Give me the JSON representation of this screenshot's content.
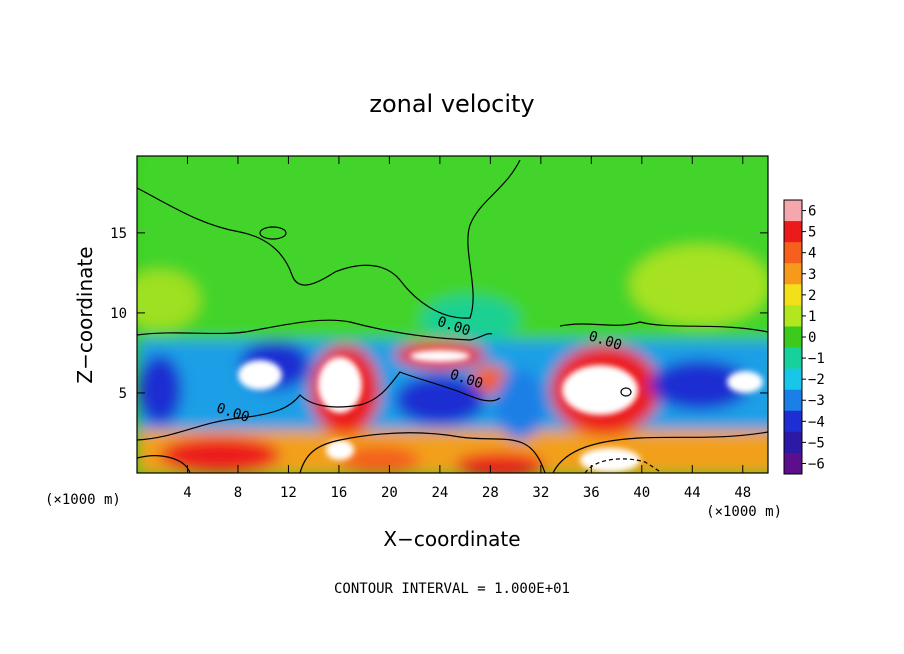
{
  "chart_data": {
    "type": "heatmap",
    "title": "zonal velocity",
    "xlabel": "X−coordinate",
    "ylabel": "Z−coordinate",
    "x_unit": "(×1000 m)",
    "y_unit": "(×1000 m)",
    "xlim": [
      0,
      50
    ],
    "ylim": [
      0,
      19.8
    ],
    "x_ticks": [
      4,
      8,
      12,
      16,
      20,
      24,
      28,
      32,
      36,
      40,
      44,
      48
    ],
    "y_ticks": [
      5,
      10,
      15
    ],
    "colorbar": {
      "levels": [
        "6",
        "5",
        "4",
        "3",
        "2",
        "1",
        "0",
        "−1",
        "−2",
        "−3",
        "−4",
        "−5",
        "−6"
      ],
      "colors": [
        "#f4a8ad",
        "#ec1b1b",
        "#f5611c",
        "#f79a1c",
        "#f2e01b",
        "#b2e61e",
        "#3ccb1d",
        "#17d19c",
        "#17c6e8",
        "#1a7fe6",
        "#1e2ed2",
        "#2b1aa6",
        "#5b0f8c"
      ]
    },
    "contour_labels": [
      {
        "text": "0.00",
        "x": 7.5,
        "z": 3.5
      },
      {
        "text": "0.00",
        "x": 25.0,
        "z": 8.9
      },
      {
        "text": "0.00",
        "x": 26.0,
        "z": 5.6
      },
      {
        "text": "0.00",
        "x": 37.0,
        "z": 8.0
      }
    ],
    "footer": "CONTOUR INTERVAL = 1.000E+01"
  }
}
